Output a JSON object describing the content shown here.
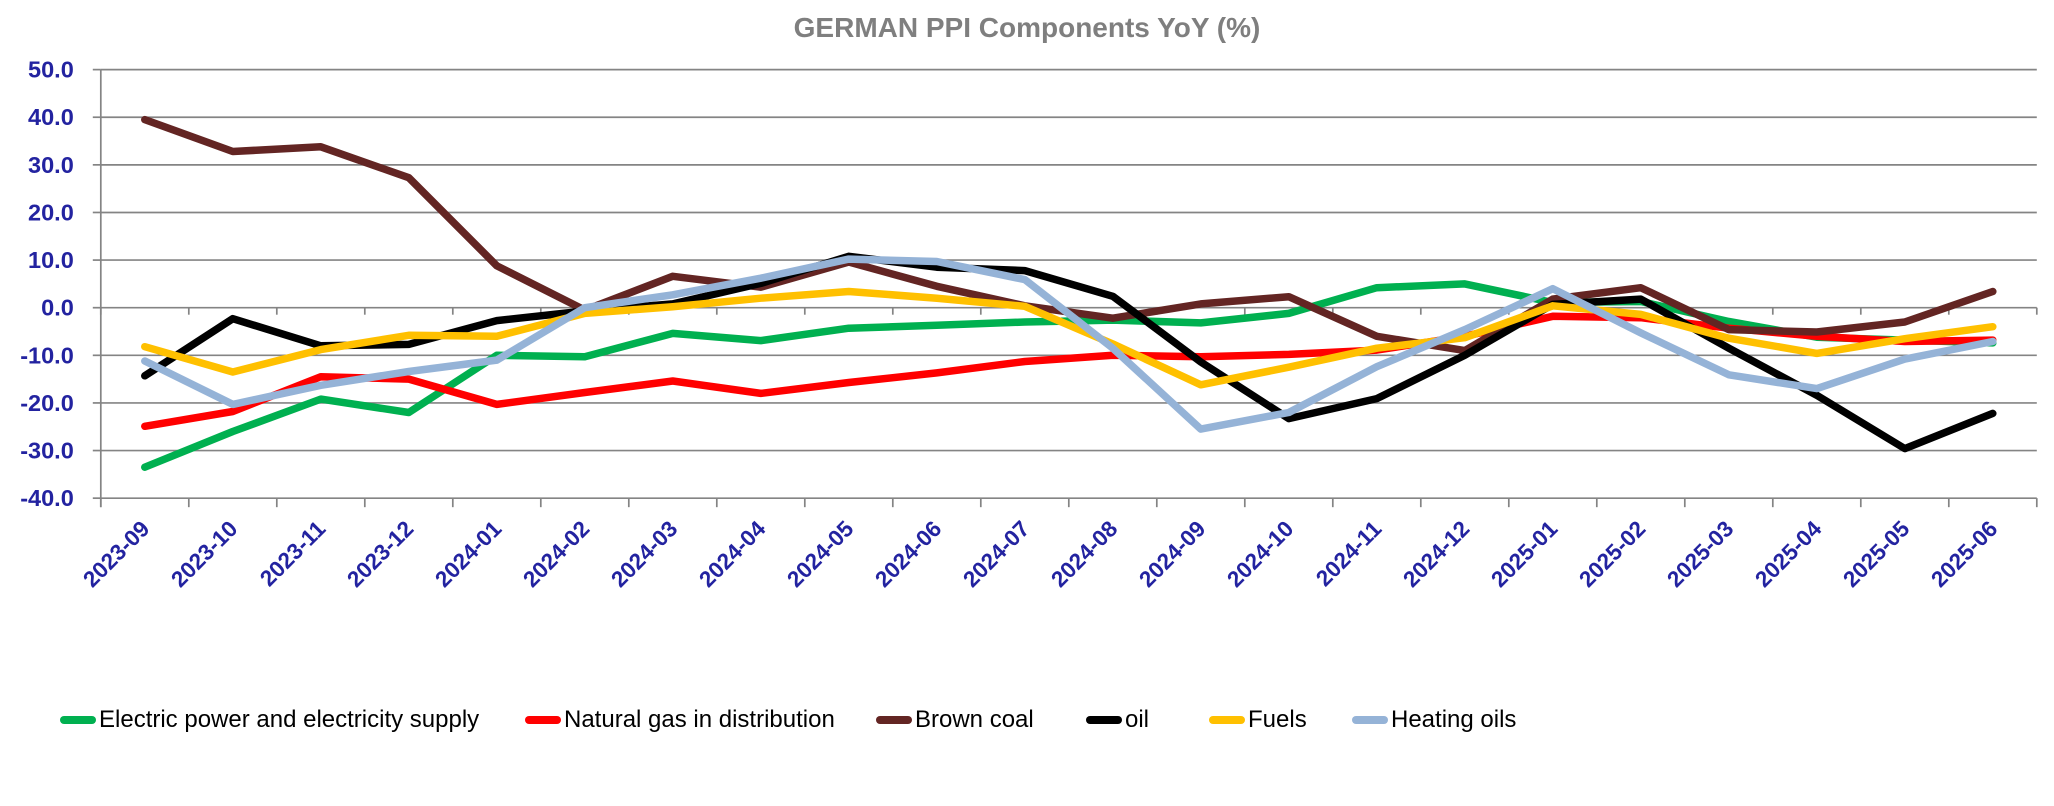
{
  "chart_data": {
    "type": "line",
    "title": "GERMAN PPI Components YoY (%)",
    "title_color": "#7F7F7F",
    "xlabel": "",
    "ylabel": "",
    "ylim": [
      -40,
      50
    ],
    "ytick_step": 10,
    "grid": true,
    "legend_position": "bottom",
    "gridline_color": "#848484",
    "axis_label_color": "#2323A0",
    "x": [
      "2023-09",
      "2023-10",
      "2023-11",
      "2023-12",
      "2024-01",
      "2024-02",
      "2024-03",
      "2024-04",
      "2024-05",
      "2024-06",
      "2024-07",
      "2024-08",
      "2024-09",
      "2024-10",
      "2024-11",
      "2024-12",
      "2025-01",
      "2025-02",
      "2025-03",
      "2025-04",
      "2025-05",
      "2025-06"
    ],
    "series": [
      {
        "name": "Electric power and electricity supply",
        "color": "#00B050",
        "values": [
          -33.5,
          -26.0,
          -19.2,
          -22.0,
          -10.0,
          -10.3,
          -5.4,
          -6.9,
          -4.3,
          -3.7,
          -3.0,
          -2.6,
          -3.2,
          -1.2,
          4.2,
          5.0,
          1.1,
          1.3,
          -2.9,
          -6.2,
          -6.8,
          -7.4
        ]
      },
      {
        "name": "Natural gas in distribution",
        "color": "#FF0000",
        "values": [
          -24.9,
          -21.8,
          -14.5,
          -15.0,
          -20.3,
          -17.8,
          -15.4,
          -18.0,
          -15.7,
          -13.7,
          -11.3,
          -10.0,
          -10.3,
          -9.8,
          -8.9,
          -6.0,
          -1.8,
          -2.1,
          -4.3,
          -6.0,
          -7.1,
          -6.8
        ]
      },
      {
        "name": "Brown coal",
        "color": "#632523",
        "values": [
          39.5,
          32.8,
          33.8,
          27.3,
          8.8,
          -0.5,
          6.6,
          4.3,
          9.6,
          4.5,
          0.4,
          -2.2,
          0.8,
          2.3,
          -6.0,
          -9.0,
          1.8,
          4.2,
          -4.6,
          -5.1,
          -3.0,
          3.4
        ]
      },
      {
        "name": "oil",
        "color": "#000000",
        "values": [
          -14.3,
          -2.3,
          -8.0,
          -7.7,
          -2.7,
          -0.7,
          0.8,
          5.1,
          10.8,
          8.5,
          7.8,
          2.4,
          -11.4,
          -23.3,
          -19.1,
          -10.0,
          0.7,
          1.8,
          -8.5,
          -18.4,
          -29.6,
          -22.2
        ]
      },
      {
        "name": "Fuels",
        "color": "#FFC000",
        "values": [
          -8.2,
          -13.5,
          -8.8,
          -5.8,
          -6.0,
          -1.2,
          0.2,
          2.0,
          3.4,
          2.0,
          0.3,
          -7.6,
          -16.2,
          -12.5,
          -8.5,
          -6.3,
          0.4,
          -1.4,
          -6.4,
          -9.6,
          -6.5,
          -4.0
        ]
      },
      {
        "name": "Heating oils",
        "color": "#95B3D7",
        "values": [
          -11.2,
          -20.3,
          -16.3,
          -13.4,
          -11.0,
          0.0,
          2.7,
          6.2,
          10.2,
          9.7,
          5.9,
          -8.5,
          -25.5,
          -22.0,
          -12.4,
          -4.6,
          4.0,
          -5.3,
          -14.1,
          -17.0,
          -10.8,
          -7.1
        ]
      }
    ]
  }
}
